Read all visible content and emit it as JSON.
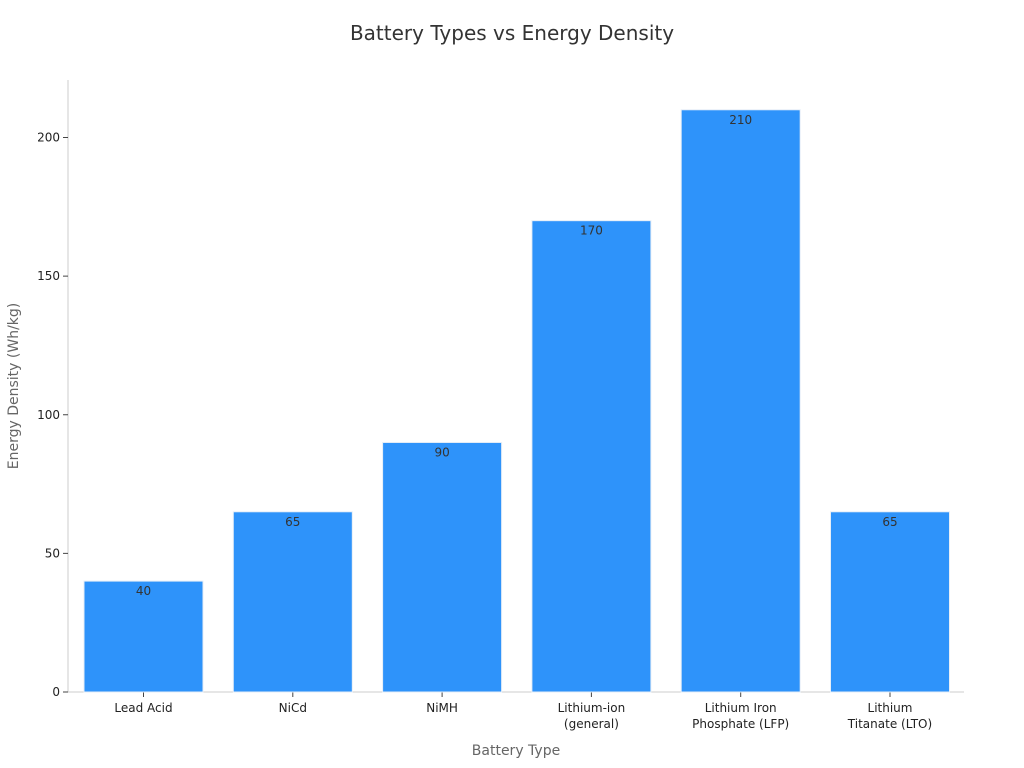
{
  "chart_data": {
    "type": "bar",
    "title": "Battery Types vs Energy Density",
    "xlabel": "Battery Type",
    "ylabel": "Energy Density (Wh/kg)",
    "categories": [
      "Lead Acid",
      "NiCd",
      "NiMH",
      "Lithium-ion (general)",
      "Lithium Iron Phosphate (LFP)",
      "Lithium Titanate (LTO)"
    ],
    "category_lines": [
      [
        "Lead Acid"
      ],
      [
        "NiCd"
      ],
      [
        "NiMH"
      ],
      [
        "Lithium-ion",
        "(general)"
      ],
      [
        "Lithium Iron",
        "Phosphate (LFP)"
      ],
      [
        "Lithium",
        "Titanate (LTO)"
      ]
    ],
    "values": [
      40,
      65,
      90,
      170,
      210,
      65
    ],
    "data_labels": [
      "40",
      "65",
      "90",
      "170",
      "210",
      "65"
    ],
    "yticks": [
      0,
      50,
      100,
      150,
      200
    ],
    "ylim": [
      0,
      220
    ],
    "bar_color": "#2e93fa",
    "bar_edge_color": "#e6eef7",
    "axis_color": "#cccccc",
    "grid": false,
    "legend": false
  }
}
